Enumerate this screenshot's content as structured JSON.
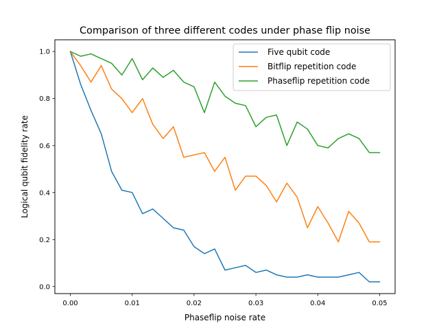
{
  "chart_data": {
    "type": "line",
    "title": "Comparison of three different codes under phase flip noise",
    "xlabel": "Phaseflip noise rate",
    "ylabel": "Logical qubit fidelity rate",
    "xlim": [
      -0.0025,
      0.0525
    ],
    "ylim": [
      -0.03,
      1.05
    ],
    "xticks": [
      0.0,
      0.01,
      0.02,
      0.03,
      0.04,
      0.05
    ],
    "xtick_labels": [
      "0.00",
      "0.01",
      "0.02",
      "0.03",
      "0.04",
      "0.05"
    ],
    "yticks": [
      0.0,
      0.2,
      0.4,
      0.6,
      0.8,
      1.0
    ],
    "ytick_labels": [
      "0.0",
      "0.2",
      "0.4",
      "0.6",
      "0.8",
      "1.0"
    ],
    "grid": false,
    "legend_position": "upper right",
    "x": [
      0.0,
      0.00167,
      0.00333,
      0.005,
      0.00667,
      0.00833,
      0.01,
      0.01167,
      0.01333,
      0.015,
      0.01667,
      0.01833,
      0.02,
      0.02167,
      0.02333,
      0.025,
      0.02667,
      0.02833,
      0.03,
      0.03167,
      0.03333,
      0.035,
      0.03667,
      0.03833,
      0.04,
      0.04167,
      0.04333,
      0.045,
      0.04667,
      0.04833,
      0.05
    ],
    "series": [
      {
        "name": "Five qubit code",
        "color": "#1f77b4",
        "values": [
          1.0,
          0.86,
          0.75,
          0.65,
          0.49,
          0.41,
          0.4,
          0.31,
          0.33,
          0.29,
          0.25,
          0.24,
          0.17,
          0.14,
          0.16,
          0.07,
          0.08,
          0.09,
          0.06,
          0.07,
          0.05,
          0.04,
          0.04,
          0.05,
          0.04,
          0.04,
          0.04,
          0.05,
          0.06,
          0.02,
          0.02
        ]
      },
      {
        "name": "Bitflip repetition code",
        "color": "#ff7f0e",
        "values": [
          1.0,
          0.94,
          0.87,
          0.94,
          0.84,
          0.8,
          0.74,
          0.8,
          0.69,
          0.63,
          0.68,
          0.55,
          0.56,
          0.57,
          0.49,
          0.55,
          0.41,
          0.47,
          0.47,
          0.43,
          0.36,
          0.44,
          0.38,
          0.25,
          0.34,
          0.27,
          0.19,
          0.32,
          0.27,
          0.19,
          0.19
        ]
      },
      {
        "name": "Phaseflip repetition code",
        "color": "#2ca02c",
        "values": [
          1.0,
          0.98,
          0.99,
          0.97,
          0.95,
          0.9,
          0.97,
          0.88,
          0.93,
          0.89,
          0.92,
          0.87,
          0.85,
          0.74,
          0.87,
          0.81,
          0.78,
          0.77,
          0.68,
          0.72,
          0.73,
          0.6,
          0.7,
          0.67,
          0.6,
          0.59,
          0.63,
          0.65,
          0.63,
          0.57,
          0.57
        ]
      }
    ]
  }
}
